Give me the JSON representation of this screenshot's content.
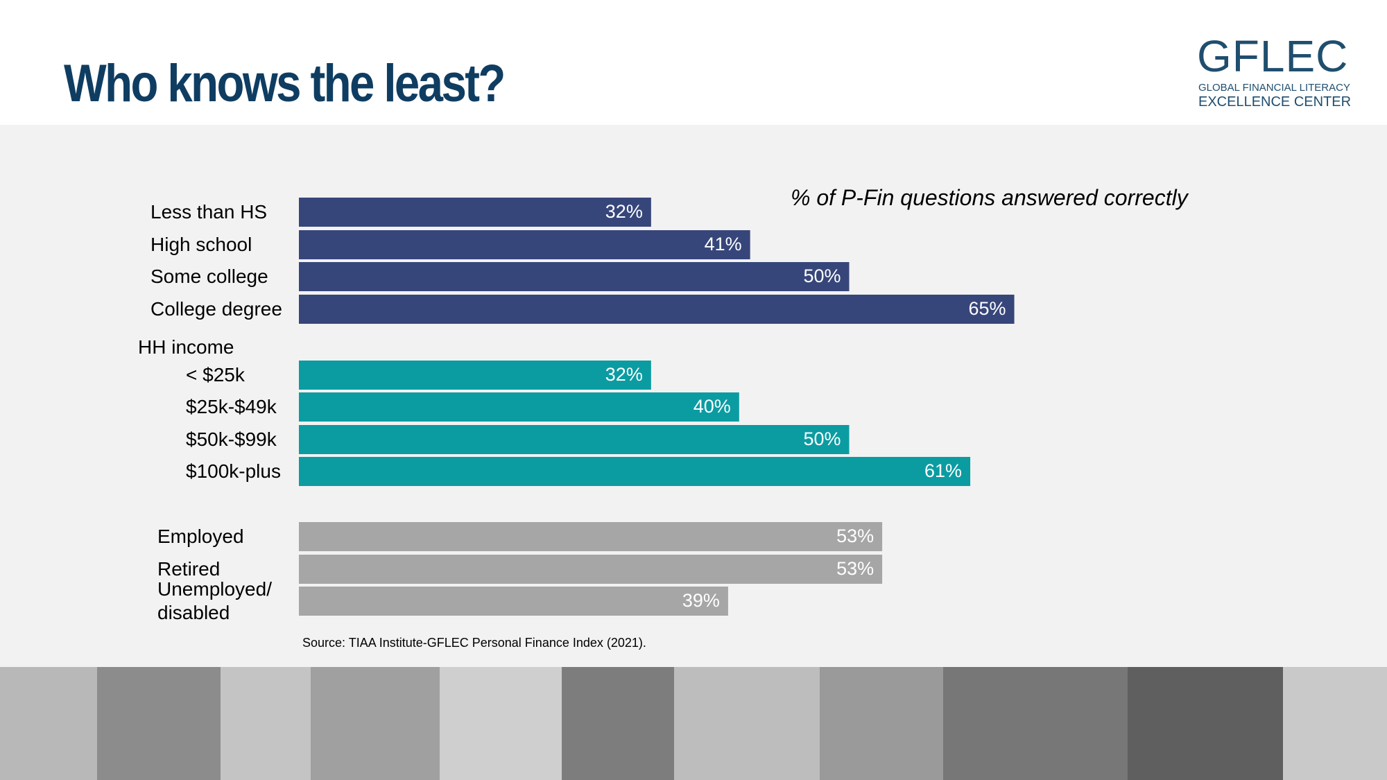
{
  "slide": {
    "title": "Who knows the least?",
    "logo": {
      "name": "GFLEC",
      "line_1": "GLOBAL FINANCIAL LITERACY",
      "line_2": "EXCELLENCE CENTER"
    },
    "source": "Source: TIAA Institute-GFLEC Personal Finance Index (2021)."
  },
  "chart_data": {
    "type": "bar",
    "orientation": "horizontal",
    "subtitle": "% of P-Fin questions answered correctly",
    "groups": [
      {
        "color": "#37467a",
        "categories": [
          "Less than HS",
          "High school",
          "Some college",
          "College degree"
        ],
        "values": [
          32,
          41,
          50,
          65
        ],
        "value_labels": [
          "32%",
          "41%",
          "50%",
          "65%"
        ]
      },
      {
        "name": "HH income",
        "color": "#0b9ca2",
        "categories": [
          "< $25k",
          "$25k-$49k",
          "$50k-$99k",
          "$100k-plus"
        ],
        "values": [
          32,
          40,
          50,
          61
        ],
        "value_labels": [
          "32%",
          "40%",
          "50%",
          "61%"
        ]
      },
      {
        "color": "#a6a6a6",
        "categories": [
          "Employed",
          "Retired",
          "Unemployed/ disabled"
        ],
        "values": [
          53,
          53,
          39
        ],
        "value_labels": [
          "53%",
          "53%",
          "39%"
        ]
      }
    ]
  }
}
